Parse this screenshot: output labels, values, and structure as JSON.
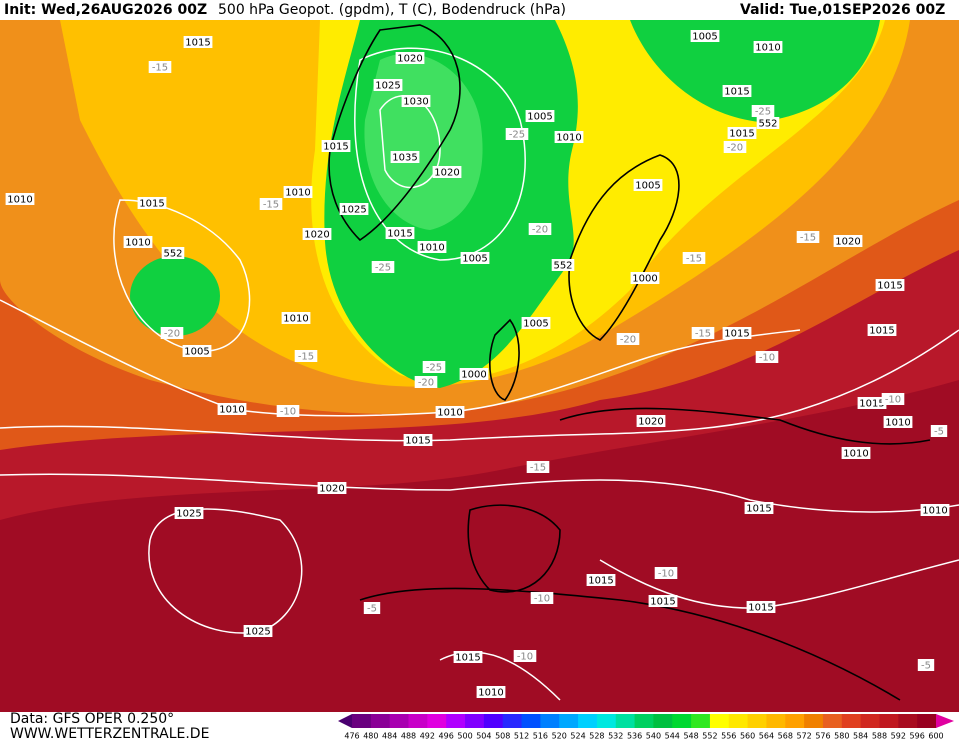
{
  "header": {
    "init": "Init: Wed,26AUG2026 00Z",
    "title": "500 hPa Geopot. (gpdm), T (C), Bodendruck (hPa)",
    "valid": "Valid: Tue,01SEP2026 00Z"
  },
  "footer": {
    "data": "Data: GFS OPER 0.250°",
    "site": "WWW.WETTERZENTRALE.DE"
  },
  "scale": {
    "values": [
      476,
      480,
      484,
      488,
      492,
      496,
      500,
      504,
      508,
      512,
      516,
      520,
      524,
      528,
      532,
      536,
      540,
      544,
      548,
      552,
      556,
      560,
      564,
      568,
      572,
      576,
      580,
      584,
      588,
      592,
      596,
      600
    ],
    "colors": [
      "#4a0070",
      "#6a007f",
      "#8a0096",
      "#a800b0",
      "#c800c8",
      "#e000e0",
      "#b000ff",
      "#8000ff",
      "#5000ff",
      "#2828ff",
      "#0050ff",
      "#0080ff",
      "#00a8ff",
      "#00d0ff",
      "#00e8e0",
      "#00e0a0",
      "#00d060",
      "#00c040",
      "#00d830",
      "#30e820",
      "#ffff00",
      "#ffe800",
      "#ffd000",
      "#ffb800",
      "#ffa000",
      "#f08000",
      "#e86020",
      "#e04020",
      "#d02820",
      "#c01820",
      "#a80c20",
      "#980020",
      "#e000a0"
    ]
  },
  "pressure_labels": [
    "1015",
    "1020",
    "1005",
    "1010",
    "1025",
    "1030",
    "1005",
    "1010",
    "1015",
    "1015",
    "1015",
    "1035",
    "1020",
    "1005",
    "1010",
    "1015",
    "1010",
    "1025",
    "1020",
    "1015",
    "1010",
    "1010",
    "1005",
    "1000",
    "1020",
    "1015",
    "1010",
    "1005",
    "1015",
    "1015",
    "1005",
    "1000",
    "1010",
    "1010",
    "1020",
    "1015",
    "1010",
    "1015",
    "1010",
    "1020",
    "1025",
    "1015",
    "1010",
    "1015",
    "1015",
    "1015",
    "1025",
    "1015",
    "1010"
  ],
  "temperature_labels": [
    "-15",
    "-25",
    "-25",
    "-20",
    "-15",
    "-20",
    "-25",
    "-15",
    "-15",
    "-20",
    "-15",
    "-15",
    "-20",
    "-10",
    "-25",
    "-20",
    "-10",
    "-10",
    "-5",
    "-15",
    "-10",
    "-10",
    "-5",
    "-10",
    "-5"
  ],
  "geopotential_labels": [
    "552",
    "552",
    "552"
  ]
}
